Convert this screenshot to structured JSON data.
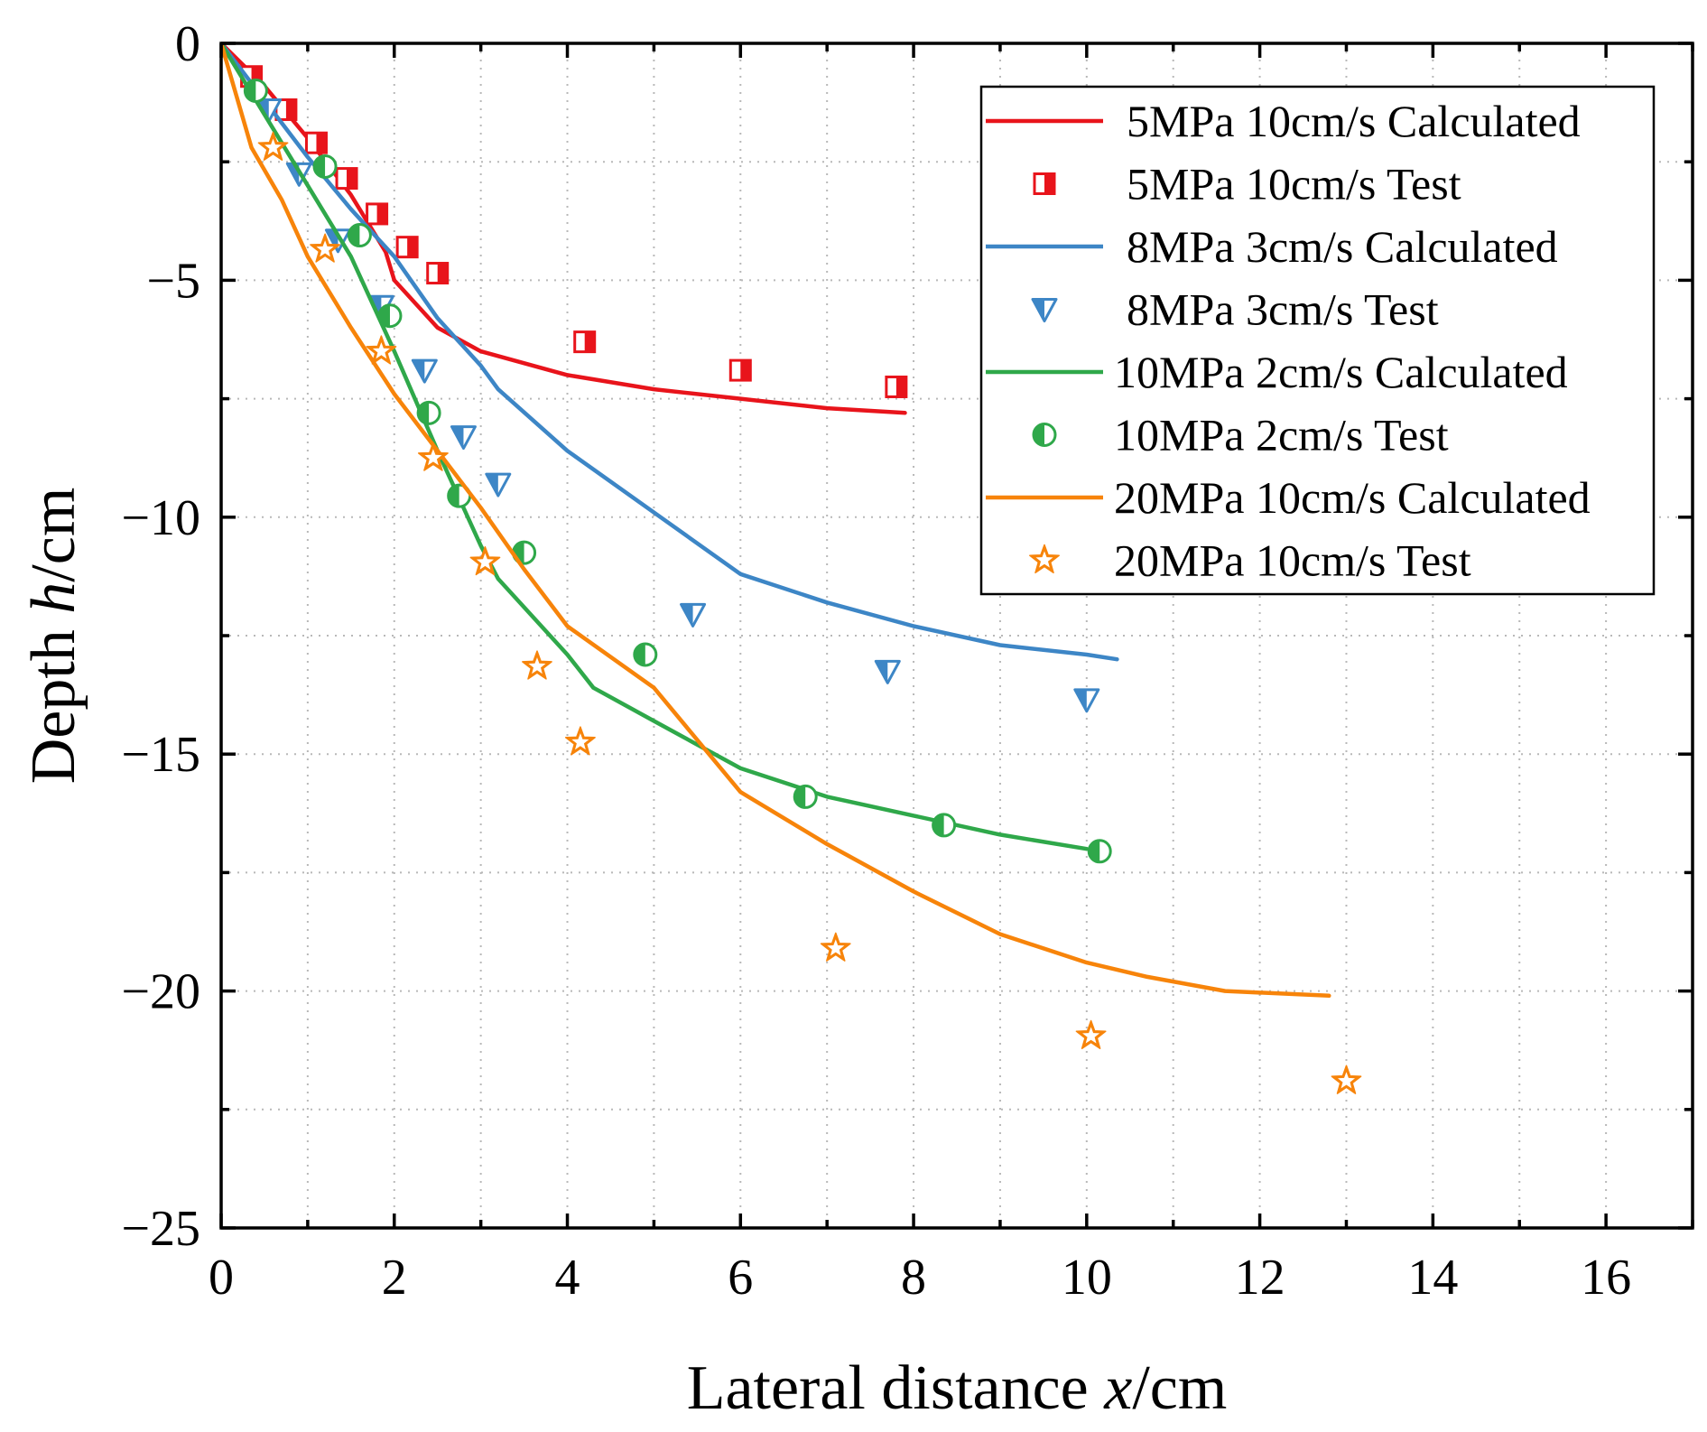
{
  "chart_data": {
    "type": "line",
    "title": "",
    "xlabel": {
      "prefix": "Lateral distance ",
      "var": "x",
      "suffix": "/cm"
    },
    "ylabel": {
      "prefix": "Depth ",
      "var": "h",
      "suffix": "/cm"
    },
    "xlim": [
      0,
      17
    ],
    "ylim": [
      -25,
      0
    ],
    "xticks": [
      0,
      2,
      4,
      6,
      8,
      10,
      12,
      14,
      16
    ],
    "yticks": [
      0,
      -5,
      -10,
      -15,
      -20,
      -25
    ],
    "xtick_labels": [
      "0",
      "2",
      "4",
      "6",
      "8",
      "10",
      "12",
      "14",
      "16"
    ],
    "ytick_labels": [
      "0",
      "−5",
      "−10",
      "−15",
      "−20",
      "−25"
    ],
    "grid": true,
    "legend_position": "top-right",
    "series": [
      {
        "name": "5MPa 10cm/s Calculated",
        "kind": "line",
        "color": "#e8141b",
        "x": [
          0,
          0.5,
          1.0,
          1.5,
          1.9,
          2.0,
          2.5,
          3.0,
          4.0,
          5.0,
          6.0,
          7.0,
          7.9
        ],
        "y": [
          0,
          -0.9,
          -2.0,
          -3.2,
          -4.4,
          -5.0,
          -6.0,
          -6.5,
          -7.0,
          -7.3,
          -7.5,
          -7.7,
          -7.8
        ]
      },
      {
        "name": "5MPa 10cm/s Test",
        "kind": "scatter",
        "marker": "square-half",
        "color": "#e8141b",
        "x": [
          0.35,
          0.75,
          1.1,
          1.45,
          1.8,
          2.15,
          2.5,
          4.2,
          6.0,
          7.8
        ],
        "y": [
          -0.7,
          -1.4,
          -2.1,
          -2.85,
          -3.6,
          -4.3,
          -4.85,
          -6.3,
          -6.9,
          -7.25
        ]
      },
      {
        "name": "8MPa  3cm/s Calculated",
        "kind": "line",
        "color": "#3d86c6",
        "x": [
          0,
          0.5,
          1.0,
          1.5,
          2.0,
          2.5,
          3.0,
          3.2,
          4.0,
          5.0,
          6.0,
          7.0,
          8.0,
          9.0,
          10.0,
          10.35
        ],
        "y": [
          0,
          -1.2,
          -2.4,
          -3.5,
          -4.5,
          -5.8,
          -6.8,
          -7.3,
          -8.6,
          -9.9,
          -11.2,
          -11.8,
          -12.3,
          -12.7,
          -12.9,
          -13.0
        ]
      },
      {
        "name": "8MPa  3cm/s Test",
        "kind": "scatter",
        "marker": "triangle-down-half",
        "color": "#3d86c6",
        "x": [
          0.55,
          0.9,
          1.35,
          1.85,
          2.35,
          2.8,
          3.2,
          5.45,
          7.7,
          10.0
        ],
        "y": [
          -1.4,
          -2.75,
          -4.15,
          -5.55,
          -6.9,
          -8.3,
          -9.3,
          -12.05,
          -13.25,
          -13.85
        ]
      },
      {
        "name": "10MPa  2cm/s Calculated",
        "kind": "line",
        "color": "#2fa84a",
        "x": [
          0,
          0.5,
          1.0,
          1.5,
          2.0,
          2.5,
          3.0,
          3.2,
          4.0,
          4.3,
          5.0,
          6.0,
          7.0,
          8.0,
          9.0,
          10.0
        ],
        "y": [
          0,
          -1.5,
          -3.0,
          -4.5,
          -6.5,
          -8.6,
          -10.6,
          -11.3,
          -12.9,
          -13.6,
          -14.3,
          -15.3,
          -15.9,
          -16.3,
          -16.7,
          -17.0
        ]
      },
      {
        "name": "10MPa  2cm/s Test",
        "kind": "scatter",
        "marker": "circle-half",
        "color": "#2fa84a",
        "x": [
          0.4,
          1.2,
          1.6,
          1.95,
          2.4,
          2.75,
          3.5,
          4.9,
          6.75,
          8.35,
          10.15
        ],
        "y": [
          -1.0,
          -2.6,
          -4.05,
          -5.75,
          -7.8,
          -9.55,
          -10.75,
          -12.9,
          -15.9,
          -16.5,
          -17.05
        ]
      },
      {
        "name": "20MPa 10cm/s Calculated",
        "kind": "line",
        "color": "#f7840a",
        "x": [
          0,
          0.35,
          0.7,
          1.0,
          1.5,
          2.0,
          2.5,
          3.0,
          3.5,
          4.0,
          5.0,
          6.0,
          7.0,
          8.0,
          9.0,
          10.0,
          10.7,
          11.6,
          12.8
        ],
        "y": [
          0,
          -2.2,
          -3.3,
          -4.5,
          -6.0,
          -7.4,
          -8.6,
          -9.8,
          -11.1,
          -12.3,
          -13.6,
          -15.8,
          -16.9,
          -17.9,
          -18.8,
          -19.4,
          -19.7,
          -20.0,
          -20.1
        ]
      },
      {
        "name": "20MPa 10cm/s Test",
        "kind": "scatter",
        "marker": "star",
        "color": "#f7840a",
        "x": [
          0.6,
          1.2,
          1.85,
          2.45,
          3.05,
          3.65,
          4.15,
          7.1,
          10.05,
          13.0
        ],
        "y": [
          -2.2,
          -4.35,
          -6.5,
          -8.75,
          -10.95,
          -13.15,
          -14.75,
          -19.1,
          -20.95,
          -21.9
        ]
      }
    ]
  }
}
